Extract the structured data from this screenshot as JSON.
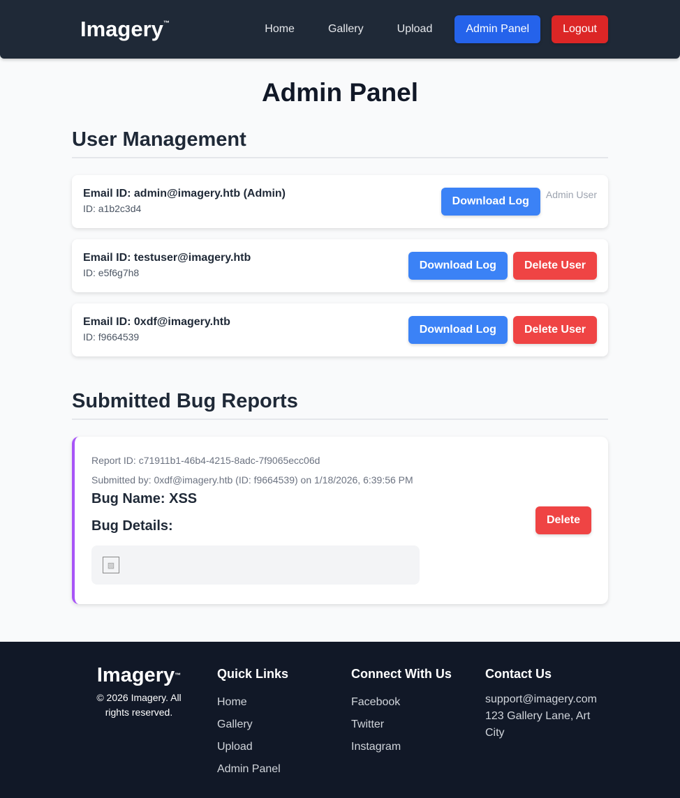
{
  "nav": {
    "logo": "Imagery",
    "tm": "™",
    "links": [
      "Home",
      "Gallery",
      "Upload"
    ],
    "admin": "Admin Panel",
    "logout": "Logout"
  },
  "title": "Admin Panel",
  "users_title": "User Management",
  "users": [
    {
      "email": "Email ID: admin@imagery.htb (Admin)",
      "id": "ID: a1b2c3d4",
      "download": "Download Log",
      "note": "Admin User"
    },
    {
      "email": "Email ID: testuser@imagery.htb",
      "id": "ID: e5f6g7h8",
      "download": "Download Log",
      "delete": "Delete User"
    },
    {
      "email": "Email ID: 0xdf@imagery.htb",
      "id": "ID: f9664539",
      "download": "Download Log",
      "delete": "Delete User"
    }
  ],
  "bugs_title": "Submitted Bug Reports",
  "bug": {
    "report_id": "Report ID: c71911b1-46b4-4215-8adc-7f9065ecc06d",
    "submitted": "Submitted by: 0xdf@imagery.htb (ID: f9664539) on 1/18/2026, 6:39:56 PM",
    "name": "Bug Name: XSS",
    "details_label": "Bug Details:",
    "details_icon": "broken-image-icon",
    "delete": "Delete"
  },
  "footer": {
    "logo": "Imagery",
    "tm": "™",
    "copyright": "© 2026 Imagery. All rights reserved.",
    "quick_title": "Quick Links",
    "quick": [
      "Home",
      "Gallery",
      "Upload",
      "Admin Panel"
    ],
    "connect_title": "Connect With Us",
    "connect": [
      "Facebook",
      "Twitter",
      "Instagram"
    ],
    "contact_title": "Contact Us",
    "email": "support@imagery.com",
    "address": "123 Gallery Lane, Art City"
  }
}
